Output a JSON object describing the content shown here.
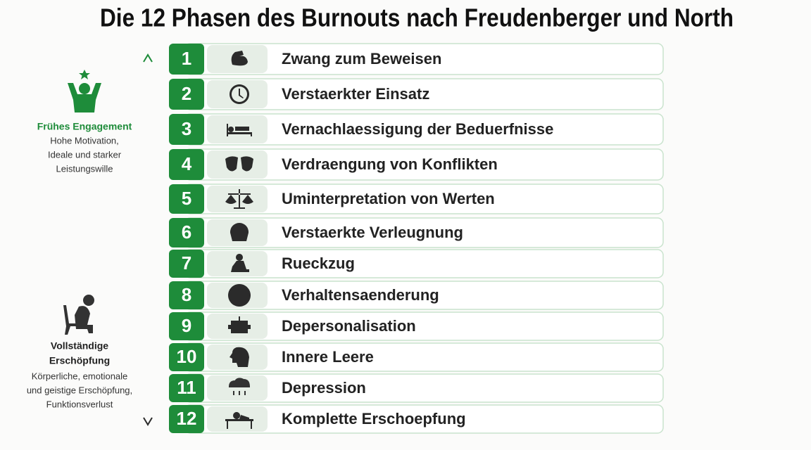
{
  "title": "Die 12 Phasen des Burnouts nach Freudenberger und North",
  "early": {
    "heading": "Frühes Engagement",
    "lines": [
      "Hohe Motivation,",
      "Ideale und starker",
      "Leistungswille"
    ]
  },
  "late": {
    "heading": [
      "Vollständige",
      "Erschöpfung"
    ],
    "lines": [
      "Körperliche, emotionale",
      "und geistige Erschöpfung,",
      "Funktionsverlust"
    ]
  },
  "phases": [
    {
      "number": "1",
      "label": "Zwang zum Beweisen"
    },
    {
      "number": "2",
      "label": "Verstaerkter Einsatz"
    },
    {
      "number": "3",
      "label": "Vernachlaessigung der Beduerfnisse"
    },
    {
      "number": "4",
      "label": "Verdraengung von Konflikten"
    },
    {
      "number": "5",
      "label": "Uminterpretation von Werten"
    },
    {
      "number": "6",
      "label": "Verstaerkte Verleugnung"
    },
    {
      "number": "7",
      "label": "Rueckzug"
    },
    {
      "number": "8",
      "label": "Verhaltensaenderung"
    },
    {
      "number": "9",
      "label": "Depersonalisation"
    },
    {
      "number": "10",
      "label": "Innere Leere"
    },
    {
      "number": "11",
      "label": "Depression"
    },
    {
      "number": "12",
      "label": "Komplette Erschoepfung"
    }
  ]
}
